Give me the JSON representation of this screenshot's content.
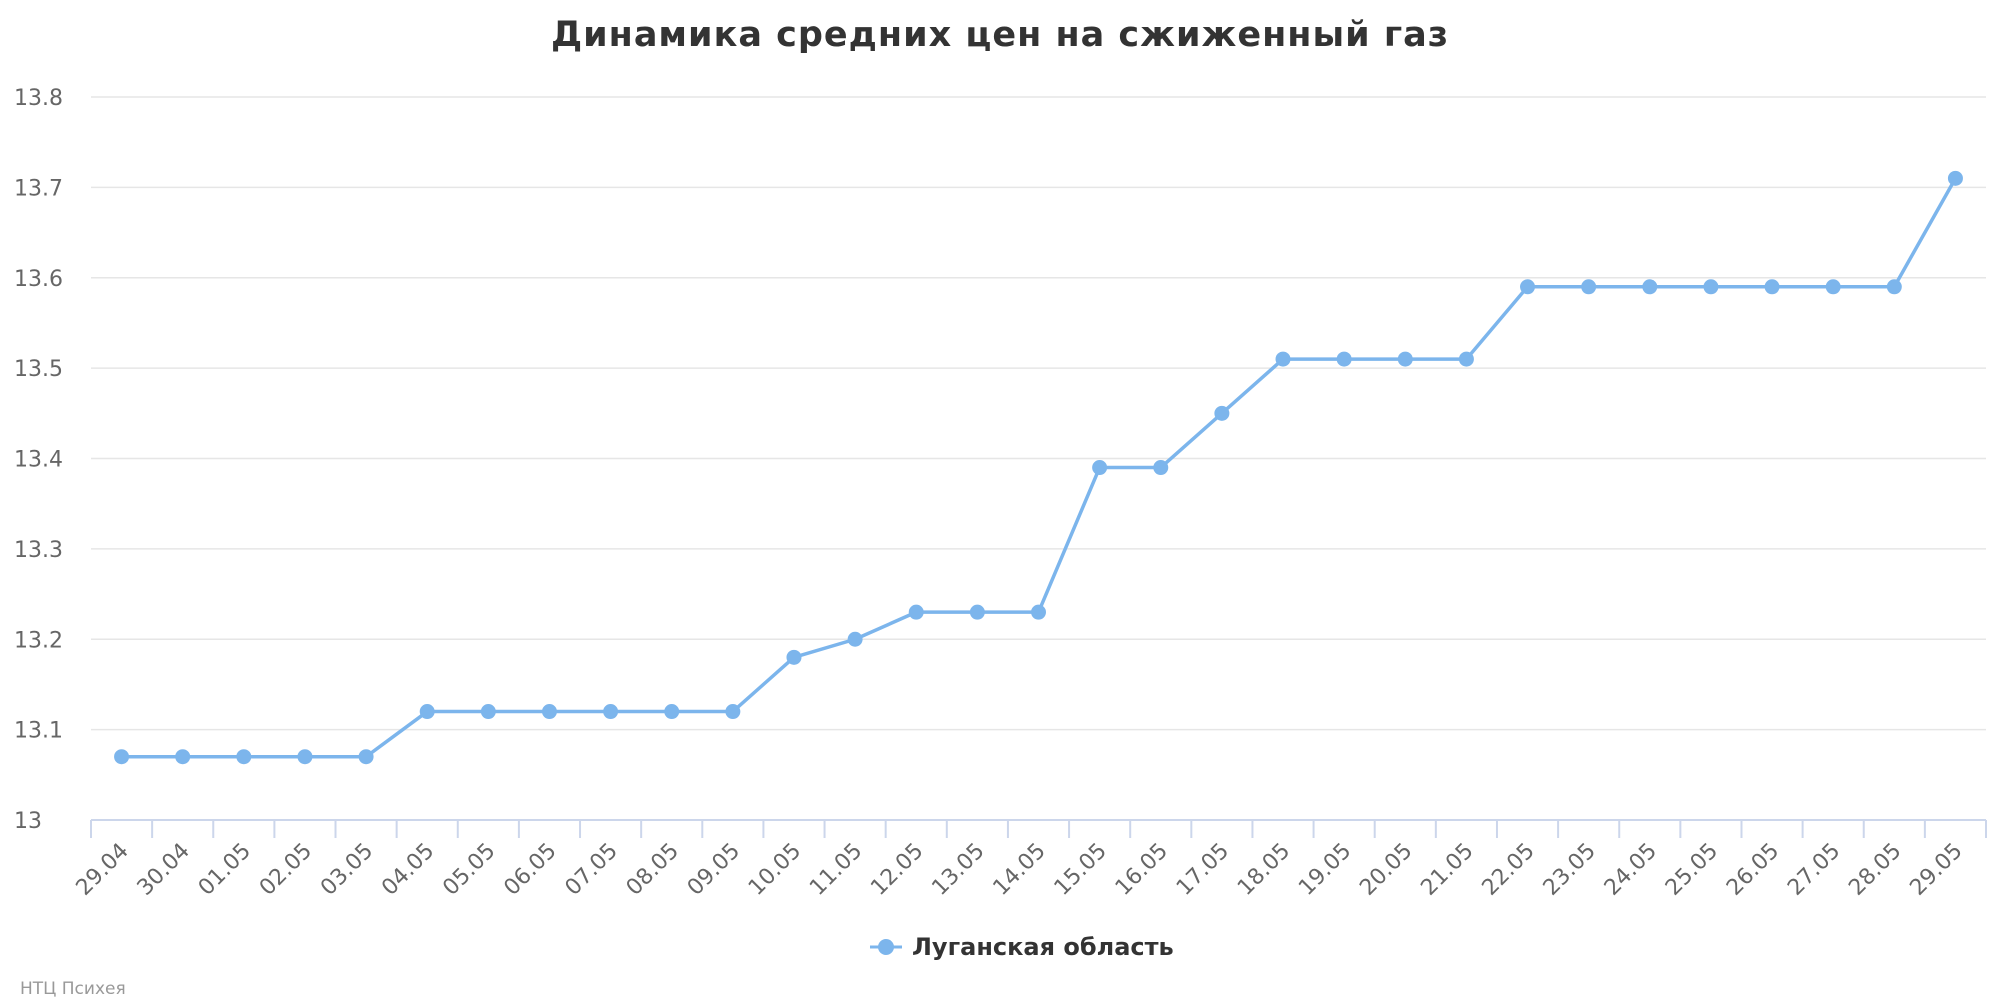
{
  "chart_data": {
    "type": "line",
    "title": "Динамика средних цен на сжиженный газ",
    "xlabel": "",
    "ylabel": "",
    "categories": [
      "29.04",
      "30.04",
      "01.05",
      "02.05",
      "03.05",
      "04.05",
      "05.05",
      "06.05",
      "07.05",
      "08.05",
      "09.05",
      "10.05",
      "11.05",
      "12.05",
      "13.05",
      "14.05",
      "15.05",
      "16.05",
      "17.05",
      "18.05",
      "19.05",
      "20.05",
      "21.05",
      "22.05",
      "23.05",
      "24.05",
      "25.05",
      "26.05",
      "27.05",
      "28.05",
      "29.05"
    ],
    "series": [
      {
        "name": "Луганская область",
        "color": "#7cb5ec",
        "values": [
          13.07,
          13.07,
          13.07,
          13.07,
          13.07,
          13.12,
          13.12,
          13.12,
          13.12,
          13.12,
          13.12,
          13.18,
          13.2,
          13.23,
          13.23,
          13.23,
          13.39,
          13.39,
          13.45,
          13.51,
          13.51,
          13.51,
          13.51,
          13.59,
          13.59,
          13.59,
          13.59,
          13.59,
          13.59,
          13.59,
          13.71
        ]
      }
    ],
    "ylim": [
      13,
      13.8
    ],
    "yticks": [
      "13",
      "13.1",
      "13.2",
      "13.3",
      "13.4",
      "13.5",
      "13.6",
      "13.7",
      "13.8"
    ],
    "grid": true,
    "legend": "bottom-center",
    "credit": "НТЦ Психея"
  }
}
